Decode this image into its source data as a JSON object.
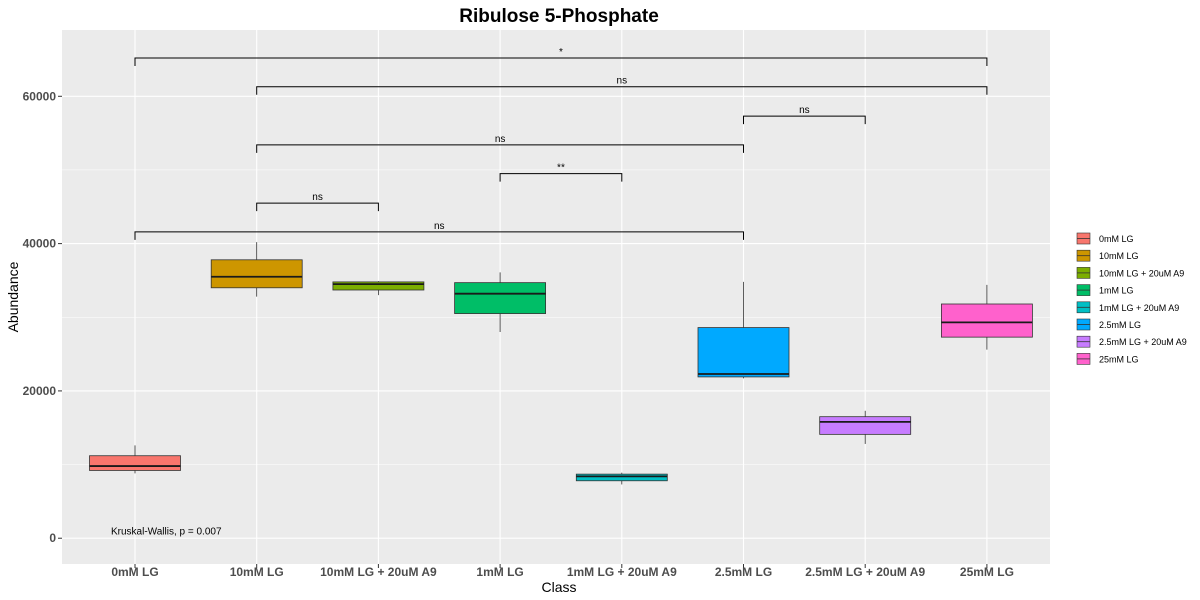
{
  "chart_data": {
    "type": "box",
    "title": "Ribulose 5-Phosphate",
    "xlabel": "Class",
    "ylabel": "Abundance",
    "ylim": [
      -3500,
      69000
    ],
    "yticks": [
      0,
      20000,
      40000,
      60000
    ],
    "ytick_labels": [
      "0",
      "20000",
      "40000",
      "60000"
    ],
    "grid": true,
    "legend_position": "right",
    "categories": [
      "0mM LG",
      "10mM LG",
      "10mM LG + 20uM A9",
      "1mM LG",
      "1mM LG + 20uM A9",
      "2.5mM LG",
      "2.5mM LG + 20uM A9",
      "25mM LG"
    ],
    "colors": [
      "#F8766D",
      "#CD9600",
      "#7CAE00",
      "#00BE67",
      "#00BFC4",
      "#00A9FF",
      "#C77CFF",
      "#FF61CC"
    ],
    "boxes": [
      {
        "category": "0mM LG",
        "min": 8800,
        "q1": 9200,
        "median": 9800,
        "q3": 11200,
        "max": 12600
      },
      {
        "category": "10mM LG",
        "min": 32800,
        "q1": 34000,
        "median": 35500,
        "q3": 37800,
        "max": 40200
      },
      {
        "category": "10mM LG + 20uM A9",
        "min": 33000,
        "q1": 33700,
        "median": 34500,
        "q3": 34800,
        "max": 34900
      },
      {
        "category": "1mM LG",
        "min": 28000,
        "q1": 30500,
        "median": 33200,
        "q3": 34700,
        "max": 36100
      },
      {
        "category": "1mM LG + 20uM A9",
        "min": 7300,
        "q1": 7800,
        "median": 8400,
        "q3": 8700,
        "max": 8900
      },
      {
        "category": "2.5mM LG",
        "min": 21700,
        "q1": 21900,
        "median": 22300,
        "q3": 28600,
        "max": 34800
      },
      {
        "category": "2.5mM LG + 20uM A9",
        "min": 12800,
        "q1": 14100,
        "median": 15800,
        "q3": 16500,
        "max": 17300
      },
      {
        "category": "25mM LG",
        "min": 25600,
        "q1": 27300,
        "median": 29300,
        "q3": 31800,
        "max": 34400
      }
    ],
    "comparisons": [
      {
        "from": "0mM LG",
        "to": "25mM LG",
        "y": 65200,
        "label": "*"
      },
      {
        "from": "10mM LG",
        "to": "25mM LG",
        "y": 61300,
        "label": "ns"
      },
      {
        "from": "2.5mM LG",
        "to": "2.5mM LG + 20uM A9",
        "y": 57300,
        "label": "ns"
      },
      {
        "from": "10mM LG",
        "to": "2.5mM LG",
        "y": 53400,
        "label": "ns"
      },
      {
        "from": "1mM LG",
        "to": "1mM LG + 20uM A9",
        "y": 49500,
        "label": "**"
      },
      {
        "from": "10mM LG",
        "to": "10mM LG + 20uM A9",
        "y": 45500,
        "label": "ns"
      },
      {
        "from": "0mM LG",
        "to": "2.5mM LG",
        "y": 41600,
        "label": "ns"
      }
    ],
    "annotation": {
      "text": "Kruskal-Wallis, p = 0.007",
      "x": "0mM LG",
      "y": 500
    }
  },
  "style": {
    "panel_bg": "#EBEBEB",
    "grid_color": "#FFFFFF"
  }
}
